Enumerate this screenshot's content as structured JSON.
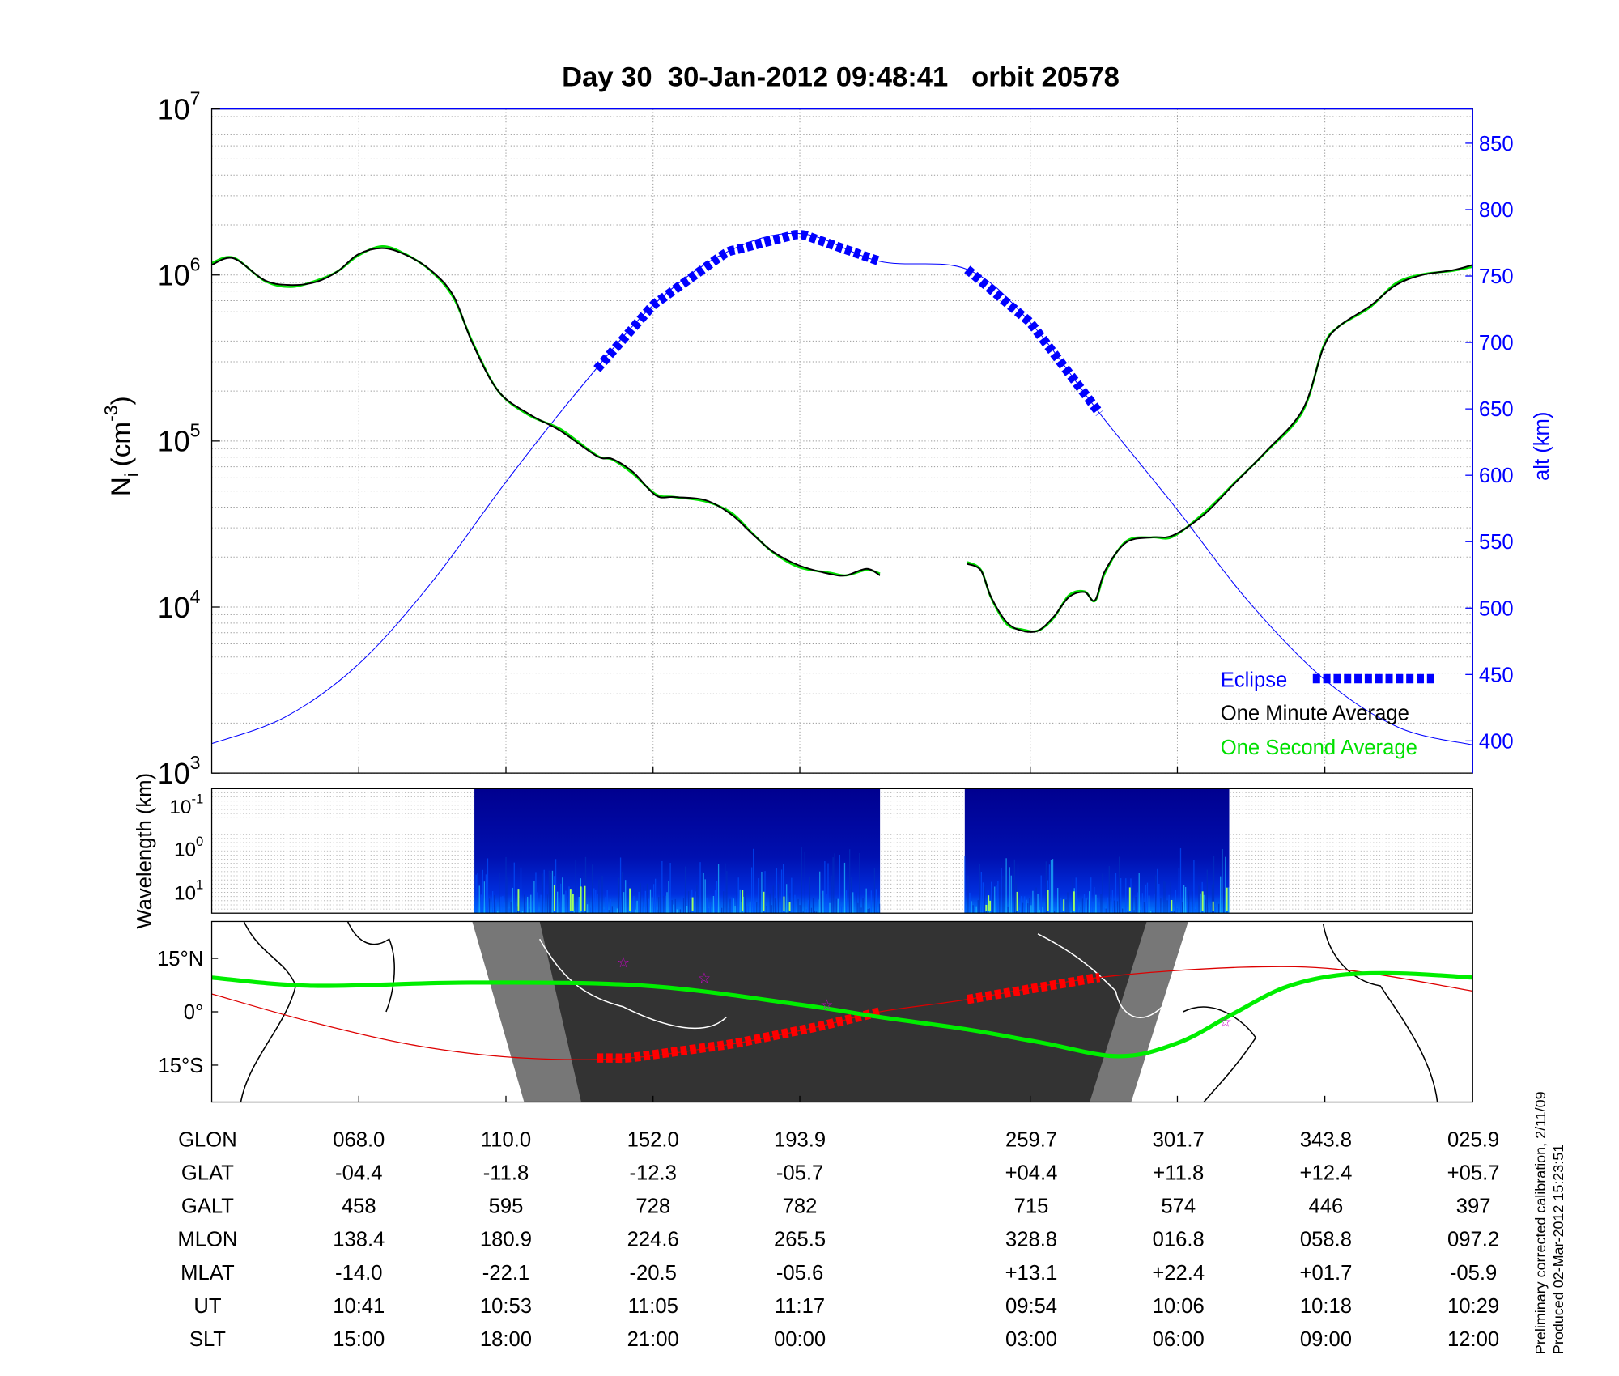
{
  "chart_data": [
    {
      "type": "line",
      "title": "Day 30  30-Jan-2012 09:48:41   orbit 20578",
      "ylabel": "N_i (cm^-3)",
      "ylabel_main": "N",
      "ylabel_sub": "i",
      "ylabel_unit": "(cm",
      "ylabel_exp": "-3",
      "ylabel_close": ")",
      "y_scale": "log",
      "ylim": [
        1000,
        10000000
      ],
      "y_tick_base": "10",
      "y_tick_exponents": [
        "7",
        "6",
        "5",
        "4",
        "3"
      ],
      "y2label": "alt (km)",
      "y2lim": [
        385,
        875
      ],
      "y2_ticks": [
        "850",
        "800",
        "750",
        "700",
        "650",
        "600",
        "550",
        "500",
        "450",
        "400"
      ],
      "x_unit_note": "geographic longitude (unwrapped, deg)",
      "xlim": [
        26,
        386
      ],
      "x_ticks": [
        68.0,
        110.0,
        152.0,
        193.9,
        259.7,
        301.7,
        343.8,
        385.9
      ],
      "grid": true,
      "legend_placement": "bottom-right",
      "legend": [
        "Eclipse",
        "One Minute Average",
        "One Second Average"
      ],
      "colors": {
        "one_minute": "#000000",
        "one_second": "#00e000",
        "altitude": "#0000ff",
        "eclipse": "#0000ff"
      },
      "series": [
        {
          "name": "One Minute Average",
          "segments": [
            [
              [
                26,
                1150000
              ],
              [
                32.2,
                1260000
              ],
              [
                41.1,
                930000
              ],
              [
                48.5,
                870000
              ],
              [
                55.9,
                910000
              ],
              [
                61.9,
                1050000
              ],
              [
                67.8,
                1330000
              ],
              [
                74.6,
                1450000
              ],
              [
                81.1,
                1330000
              ],
              [
                88.5,
                1070000
              ],
              [
                95.0,
                750000
              ],
              [
                100.4,
                390000
              ],
              [
                107.8,
                200000
              ],
              [
                116.7,
                145000
              ],
              [
                125.6,
                115000
              ],
              [
                136.0,
                81000
              ],
              [
                140.4,
                78000
              ],
              [
                146.3,
                65000
              ],
              [
                152.8,
                47000
              ],
              [
                158.1,
                46000
              ],
              [
                167.0,
                44000
              ],
              [
                174.4,
                36000
              ],
              [
                180.4,
                27500
              ],
              [
                186.3,
                21500
              ],
              [
                193.7,
                17800
              ],
              [
                202.6,
                15800
              ],
              [
                207.1,
                15500
              ],
              [
                213.0,
                17000
              ],
              [
                216.8,
                15500
              ]
            ],
            [
              [
                241.7,
                18200
              ],
              [
                245.6,
                16600
              ],
              [
                248.5,
                11500
              ],
              [
                253.0,
                8100
              ],
              [
                257.4,
                7200
              ],
              [
                261.9,
                7200
              ],
              [
                266.3,
                8700
              ],
              [
                270.8,
                11500
              ],
              [
                275.2,
                12300
              ],
              [
                278.2,
                11000
              ],
              [
                281.1,
                16600
              ],
              [
                287.1,
                24500
              ],
              [
                294.5,
                26300
              ],
              [
                300.4,
                27000
              ],
              [
                309.3,
                36000
              ],
              [
                318.2,
                56000
              ],
              [
                327.1,
                87000
              ],
              [
                337.5,
                155000
              ],
              [
                343.4,
                365000
              ],
              [
                347.8,
                490000
              ],
              [
                356.7,
                650000
              ],
              [
                364.1,
                870000
              ],
              [
                371.6,
                1000000
              ],
              [
                380.4,
                1070000
              ],
              [
                386.0,
                1150000
              ]
            ]
          ]
        },
        {
          "name": "One Second Average",
          "segments": "follows One Minute Average with small fluctuations"
        },
        {
          "name": "altitude",
          "axis": "right",
          "points": [
            [
              26,
              398
            ],
            [
              47,
              418
            ],
            [
              68,
              458
            ],
            [
              89,
              520
            ],
            [
              110,
              595
            ],
            [
              131,
              665
            ],
            [
              152,
              728
            ],
            [
              173,
              768
            ],
            [
              193.9,
              782
            ],
            [
              216.8,
              761
            ],
            [
              241.7,
              755
            ],
            [
              259.7,
              715
            ],
            [
              280,
              645
            ],
            [
              301.7,
              574
            ],
            [
              322,
              505
            ],
            [
              343.8,
              446
            ],
            [
              365,
              410
            ],
            [
              385.9,
              397
            ]
          ]
        },
        {
          "name": "Eclipse",
          "ranges": [
            [
              136.0,
              216.8
            ],
            [
              241.7,
              279.5
            ]
          ]
        }
      ]
    },
    {
      "type": "heatmap",
      "ylabel": "Wavelength (km)",
      "y_tick_base": "10",
      "y_tick_exponents": [
        "-1",
        "0",
        "1"
      ],
      "data_ranges": [
        [
          101.0,
          216.8
        ],
        [
          241.0,
          316.5
        ]
      ],
      "colormap": "jet"
    },
    {
      "type": "map",
      "lat_ticks": [
        "15°N",
        "0°",
        "15°S"
      ],
      "lat_tick_values": [
        15,
        0,
        -15
      ],
      "track": [
        [
          26,
          9.6
        ],
        [
          55,
          7.3
        ],
        [
          100,
          8.2
        ],
        [
          150,
          7.3
        ],
        [
          193.9,
          2.0
        ],
        [
          216.8,
          -1.5
        ],
        [
          242,
          -5.0
        ],
        [
          263,
          -8.7
        ],
        [
          285,
          -12.5
        ],
        [
          302,
          -8.7
        ],
        [
          317,
          -0.9
        ],
        [
          332,
          6.7
        ],
        [
          347,
          10.2
        ],
        [
          365,
          10.8
        ],
        [
          386,
          9.6
        ]
      ],
      "magnetic_equator": [
        [
          26,
          5.0
        ],
        [
          55,
          -3.0
        ],
        [
          85,
          -9.6
        ],
        [
          115,
          -13.0
        ],
        [
          145,
          -13.0
        ],
        [
          175,
          -9.0
        ],
        [
          200,
          -4.0
        ],
        [
          216.8,
          0.0
        ],
        [
          242,
          3.5
        ],
        [
          279,
          9.6
        ],
        [
          320,
          12.5
        ],
        [
          350,
          11.7
        ],
        [
          386,
          5.8
        ]
      ],
      "eclipse_ranges": [
        [
          136.0,
          216.8
        ],
        [
          241.7,
          279.5
        ]
      ],
      "stars": [
        [
          143.5,
          14.0
        ],
        [
          166.6,
          9.5
        ],
        [
          201.6,
          2.0
        ],
        [
          315.4,
          -2.7
        ]
      ],
      "colors": {
        "track": "#00ee00",
        "magnetic_equator": "#dd0000",
        "night": "#333333",
        "twilight": "#777777",
        "star": "#cc00cc"
      }
    }
  ],
  "table": {
    "rows": [
      {
        "label": "GLON",
        "values": [
          "068.0",
          "110.0",
          "152.0",
          "193.9",
          "259.7",
          "301.7",
          "343.8",
          "025.9"
        ]
      },
      {
        "label": "GLAT",
        "values": [
          "-04.4",
          "-11.8",
          "-12.3",
          "-05.7",
          "+04.4",
          "+11.8",
          "+12.4",
          "+05.7"
        ]
      },
      {
        "label": "GALT",
        "values": [
          "458",
          "595",
          "728",
          "782",
          "715",
          "574",
          "446",
          "397"
        ]
      },
      {
        "label": "MLON",
        "values": [
          "138.4",
          "180.9",
          "224.6",
          "265.5",
          "328.8",
          "016.8",
          "058.8",
          "097.2"
        ]
      },
      {
        "label": "MLAT",
        "values": [
          "-14.0",
          "-22.1",
          "-20.5",
          "-05.6",
          "+13.1",
          "+22.4",
          "+01.7",
          "-05.9"
        ]
      },
      {
        "label": "UT",
        "values": [
          "10:41",
          "10:53",
          "11:05",
          "11:17",
          "09:54",
          "10:06",
          "10:18",
          "10:29"
        ]
      },
      {
        "label": "SLT",
        "values": [
          "15:00",
          "18:00",
          "21:00",
          "00:00",
          "03:00",
          "06:00",
          "09:00",
          "12:00"
        ]
      }
    ]
  },
  "footer": {
    "line1": "Preliminary corrected calibration, 2/11/09",
    "line2": "Produced 02-Mar-2012 15:23:51"
  }
}
